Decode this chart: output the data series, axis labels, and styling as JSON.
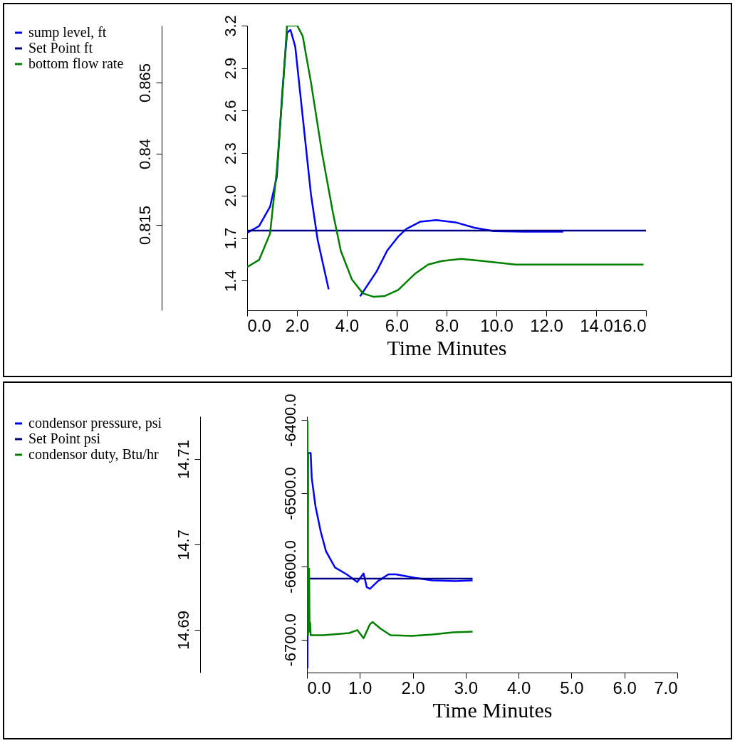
{
  "chart_data": [
    {
      "type": "line",
      "xlabel": "Time Minutes",
      "legend": "left",
      "grid": false,
      "xlim": [
        0,
        16
      ],
      "xticks": [
        {
          "value": 0,
          "label": "0.0"
        },
        {
          "value": 2,
          "label": "2.0"
        },
        {
          "value": 4,
          "label": "4.0"
        },
        {
          "value": 6,
          "label": "6.0"
        },
        {
          "value": 8,
          "label": "8.0"
        },
        {
          "value": 10,
          "label": "10.0"
        },
        {
          "value": 12,
          "label": "12.0"
        },
        {
          "value": 14,
          "label": "14.0"
        },
        {
          "value": 16,
          "label": "16.0"
        }
      ],
      "ylim": [
        0.785,
        0.885
      ],
      "yticks": [
        0.815,
        0.84,
        0.865
      ],
      "y2lim": [
        1.19,
        3.2
      ],
      "y2ticks": [
        {
          "value": 1.4,
          "label": "1.4"
        },
        {
          "value": 1.7,
          "label": "1.7"
        },
        {
          "value": 2.0,
          "label": "2.0"
        },
        {
          "value": 2.3,
          "label": "2.3"
        },
        {
          "value": 2.6,
          "label": "2.6"
        },
        {
          "value": 2.9,
          "label": "2.9"
        },
        {
          "value": 3.2,
          "label": "3.2"
        }
      ],
      "series": [
        {
          "name": "sump level, ft",
          "color": "#0000ff",
          "x": [
            0,
            0.48,
            0.92,
            1.19,
            1.41,
            1.6,
            1.74,
            1.93,
            2.23,
            2.56,
            2.83,
            3.27,
            3.76,
            4.04,
            4.53,
            5.19,
            5.62,
            6.06,
            6.39,
            6.94,
            7.59,
            8.36,
            9.12,
            9.89,
            11.09,
            12.68
          ],
          "values": [
            0.8122,
            0.8146,
            0.8214,
            0.8319,
            0.8615,
            0.8825,
            0.8835,
            0.8776,
            0.8529,
            0.8257,
            0.8097,
            0.7924,
            null,
            null,
            0.7899,
            0.7986,
            0.806,
            0.8109,
            0.8136,
            0.8161,
            0.8167,
            0.8159,
            0.814,
            0.8128,
            0.8126,
            0.8126
          ]
        },
        {
          "name": "Set Point ft",
          "color": "#000080",
          "x": [
            0,
            16
          ],
          "values": [
            0.813,
            0.813
          ]
        },
        {
          "name": "bottom flow rate",
          "color": "#008000",
          "axis": "y2",
          "x": [
            0,
            0.48,
            0.92,
            1.19,
            1.41,
            1.6,
            2.01,
            2.23,
            2.56,
            3.0,
            3.44,
            3.76,
            4.2,
            4.64,
            5.08,
            5.51,
            6.06,
            6.72,
            7.26,
            7.81,
            8.58,
            9.45,
            10.77,
            13.28,
            15.9
          ],
          "values": [
            1.496,
            1.546,
            1.732,
            2.18,
            2.7,
            3.2,
            3.2,
            3.125,
            2.8,
            2.305,
            1.88,
            1.608,
            1.409,
            1.31,
            1.285,
            1.29,
            1.334,
            1.446,
            1.513,
            1.538,
            1.553,
            1.538,
            1.513,
            1.513,
            1.513
          ]
        }
      ]
    },
    {
      "type": "line",
      "xlabel": "Time Minutes",
      "legend": "left",
      "grid": false,
      "xlim": [
        0,
        7
      ],
      "xticks": [
        {
          "value": 0,
          "label": "0.0"
        },
        {
          "value": 1,
          "label": "1.0"
        },
        {
          "value": 2,
          "label": "2.0"
        },
        {
          "value": 3,
          "label": "3.0"
        },
        {
          "value": 4,
          "label": "4.0"
        },
        {
          "value": 5,
          "label": "5.0"
        },
        {
          "value": 6,
          "label": "6.0"
        },
        {
          "value": 7,
          "label": "7.0"
        }
      ],
      "ylim": [
        14.685,
        14.715
      ],
      "yticks": [
        14.69,
        14.7,
        14.71
      ],
      "y2lim": [
        -6745,
        -6395
      ],
      "y2ticks": [
        {
          "value": -6700,
          "label": "-6700.0"
        },
        {
          "value": -6600,
          "label": "-6600.0"
        },
        {
          "value": -6500,
          "label": "-6500.0"
        },
        {
          "value": -6400,
          "label": "-6400.0"
        }
      ],
      "series": [
        {
          "name": "condensor pressure, psi",
          "color": "#0000ff",
          "x": [
            0.01,
            0.02,
            0.07,
            0.09,
            0.16,
            0.26,
            0.36,
            0.53,
            0.75,
            0.95,
            1.07,
            1.13,
            1.19,
            1.34,
            1.54,
            1.68,
            2.03,
            2.37,
            2.81,
            3.13
          ],
          "values": [
            14.6855,
            14.7107,
            14.7107,
            14.7078,
            14.7045,
            14.7015,
            14.6992,
            14.6973,
            14.6965,
            14.6956,
            14.6966,
            14.695,
            14.6948,
            14.6957,
            14.6965,
            14.6965,
            14.6961,
            14.6958,
            14.6957,
            14.6958
          ]
        },
        {
          "name": "Set Point psi",
          "color": "#000080",
          "x": [
            0,
            3.13
          ],
          "values": [
            14.696,
            14.696
          ]
        },
        {
          "name": "condensor duty, Btu/hr",
          "color": "#008000",
          "axis": "y2",
          "x": [
            0.01,
            0.02,
            0.04,
            0.05,
            0.06,
            0.07,
            0.31,
            0.8,
            0.95,
            1.07,
            1.19,
            1.24,
            1.39,
            1.58,
            1.98,
            2.37,
            2.76,
            3.13
          ],
          "values": [
            -6401,
            -6694,
            -6603,
            -6689,
            -6677,
            -6694,
            -6694,
            -6691,
            -6687,
            -6698,
            -6679,
            -6676,
            -6685,
            -6694,
            -6695,
            -6693,
            -6690,
            -6689
          ]
        }
      ]
    }
  ]
}
